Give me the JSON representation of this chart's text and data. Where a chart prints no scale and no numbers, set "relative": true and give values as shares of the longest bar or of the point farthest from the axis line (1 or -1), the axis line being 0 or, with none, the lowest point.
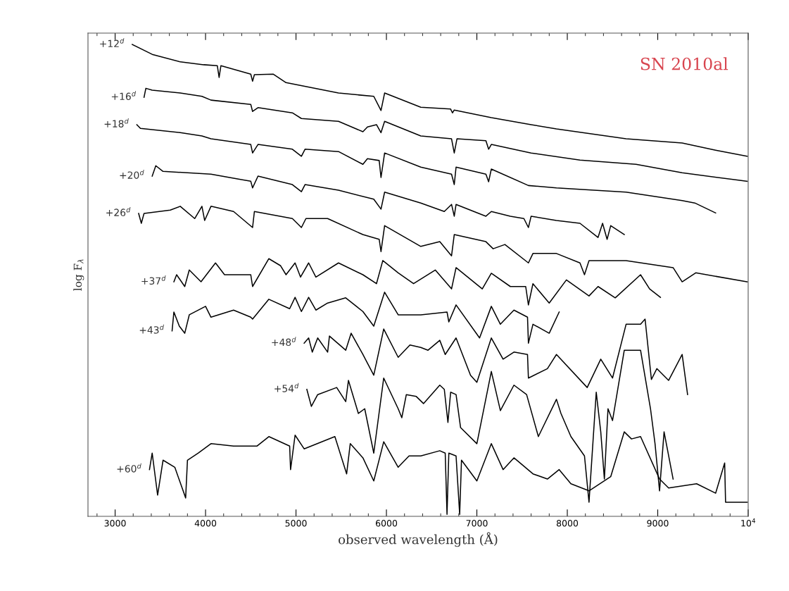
{
  "chart_data": {
    "type": "line",
    "relative": true,
    "xlabel": "observed wavelength (Å)",
    "ylabel": "log F$_{λ}$",
    "annotations": [
      "SN 2010al"
    ],
    "xlim": [
      2700,
      10000
    ],
    "xticks": [
      3000,
      4000,
      5000,
      6000,
      7000,
      8000,
      9000,
      {
        "value": 10000,
        "label": "10$^{4}$"
      }
    ],
    "series": [
      {
        "name": "+12$^{d}$",
        "color": "#000000",
        "x": [
          3190,
          3410,
          3720,
          3980,
          4130,
          4150,
          4170,
          4500,
          4520,
          4540,
          4750,
          4890,
          5470,
          5860,
          5940,
          5980,
          6380,
          6710,
          6730,
          6750,
          7160,
          7600,
          7880,
          8650,
          9270,
          9640,
          9990
        ],
        "values": [
          1.0,
          0.979,
          0.963,
          0.957,
          0.955,
          0.93,
          0.955,
          0.937,
          0.922,
          0.936,
          0.937,
          0.919,
          0.897,
          0.89,
          0.86,
          0.897,
          0.867,
          0.863,
          0.855,
          0.861,
          0.845,
          0.83,
          0.821,
          0.8,
          0.791,
          0.776,
          0.763
        ]
      },
      {
        "name": "+16$^{d}$",
        "color": "#000000",
        "x": [
          3320,
          3340,
          3410,
          3720,
          3960,
          4060,
          4500,
          4520,
          4580,
          4960,
          5060,
          5470,
          5740,
          5790,
          5890,
          5940,
          5980,
          6380,
          6720,
          6750,
          6780,
          7100,
          7130,
          7160,
          7600,
          8140,
          8760,
          9270,
          9990
        ],
        "values": [
          0.888,
          0.907,
          0.903,
          0.897,
          0.89,
          0.882,
          0.873,
          0.858,
          0.866,
          0.855,
          0.843,
          0.837,
          0.815,
          0.825,
          0.83,
          0.813,
          0.837,
          0.806,
          0.8,
          0.77,
          0.8,
          0.796,
          0.778,
          0.788,
          0.77,
          0.755,
          0.746,
          0.728,
          0.71
        ]
      },
      {
        "name": "+18$^{d}$",
        "color": "#000000",
        "x": [
          3240,
          3280,
          3720,
          3960,
          4060,
          4500,
          4520,
          4580,
          4960,
          5060,
          5100,
          5470,
          5740,
          5790,
          5920,
          5940,
          5980,
          6380,
          6720,
          6750,
          6770,
          7100,
          7130,
          7160,
          7570,
          7880,
          8650,
          9270,
          9410,
          9640
        ],
        "values": [
          0.83,
          0.822,
          0.813,
          0.806,
          0.8,
          0.788,
          0.77,
          0.788,
          0.778,
          0.763,
          0.778,
          0.773,
          0.746,
          0.758,
          0.754,
          0.718,
          0.77,
          0.74,
          0.725,
          0.703,
          0.74,
          0.725,
          0.709,
          0.736,
          0.701,
          0.696,
          0.687,
          0.669,
          0.664,
          0.643
        ]
      },
      {
        "name": "+20$^{d}$",
        "color": "#000000",
        "x": [
          3410,
          3450,
          3530,
          4060,
          4500,
          4520,
          4580,
          4960,
          5060,
          5100,
          5470,
          5860,
          5940,
          5980,
          6380,
          6640,
          6720,
          6750,
          6770,
          7100,
          7160,
          7370,
          7520,
          7570,
          7600,
          7880,
          8140,
          8340,
          8390,
          8440,
          8480,
          8630
        ],
        "values": [
          0.721,
          0.743,
          0.731,
          0.725,
          0.71,
          0.696,
          0.721,
          0.703,
          0.688,
          0.703,
          0.691,
          0.672,
          0.651,
          0.687,
          0.664,
          0.646,
          0.661,
          0.636,
          0.661,
          0.636,
          0.646,
          0.636,
          0.631,
          0.612,
          0.636,
          0.627,
          0.621,
          0.591,
          0.621,
          0.587,
          0.616,
          0.597
        ]
      },
      {
        "name": "+26$^{d}$",
        "color": "#000000",
        "x": [
          3260,
          3290,
          3320,
          3610,
          3720,
          3880,
          3960,
          3990,
          4060,
          4310,
          4520,
          4540,
          4960,
          5060,
          5110,
          5350,
          5740,
          5920,
          5940,
          5980,
          6380,
          6590,
          6720,
          6750,
          7100,
          7180,
          7310,
          7570,
          7620,
          7880,
          8140,
          8190,
          8240,
          8650,
          9170,
          9270,
          9420,
          9990
        ],
        "values": [
          0.642,
          0.621,
          0.642,
          0.649,
          0.657,
          0.631,
          0.657,
          0.627,
          0.657,
          0.646,
          0.612,
          0.646,
          0.631,
          0.612,
          0.631,
          0.631,
          0.597,
          0.587,
          0.561,
          0.616,
          0.572,
          0.582,
          0.552,
          0.597,
          0.582,
          0.567,
          0.576,
          0.537,
          0.557,
          0.557,
          0.537,
          0.512,
          0.542,
          0.542,
          0.527,
          0.497,
          0.516,
          0.497
        ]
      },
      {
        "name": "+37$^{d}$",
        "color": "#000000",
        "x": [
          3650,
          3680,
          3770,
          3820,
          3950,
          4110,
          4210,
          4500,
          4520,
          4700,
          4830,
          4890,
          4990,
          5050,
          5140,
          5220,
          5470,
          5740,
          5890,
          5960,
          6130,
          6300,
          6540,
          6720,
          6770,
          7060,
          7160,
          7370,
          7540,
          7570,
          7620,
          7800,
          7990,
          8240,
          8340,
          8530,
          8810,
          8910,
          9030
        ],
        "values": [
          0.497,
          0.512,
          0.487,
          0.522,
          0.497,
          0.537,
          0.512,
          0.512,
          0.487,
          0.546,
          0.531,
          0.512,
          0.537,
          0.507,
          0.537,
          0.507,
          0.537,
          0.512,
          0.493,
          0.542,
          0.516,
          0.493,
          0.522,
          0.482,
          0.527,
          0.482,
          0.515,
          0.487,
          0.487,
          0.448,
          0.493,
          0.452,
          0.501,
          0.467,
          0.487,
          0.463,
          0.512,
          0.482,
          0.464
        ]
      },
      {
        "name": "+43$^{d}$",
        "color": "#000000",
        "x": [
          3630,
          3650,
          3710,
          3770,
          3820,
          4000,
          4060,
          4310,
          4500,
          4520,
          4700,
          4930,
          4990,
          5060,
          5140,
          5220,
          5350,
          5550,
          5740,
          5860,
          5980,
          6130,
          6380,
          6670,
          6690,
          6770,
          7030,
          7160,
          7260,
          7410,
          7560,
          7570,
          7620,
          7800,
          7910
        ],
        "values": [
          0.393,
          0.433,
          0.403,
          0.388,
          0.427,
          0.445,
          0.422,
          0.437,
          0.422,
          0.418,
          0.46,
          0.44,
          0.464,
          0.434,
          0.464,
          0.437,
          0.452,
          0.463,
          0.434,
          0.403,
          0.475,
          0.427,
          0.427,
          0.433,
          0.412,
          0.448,
          0.378,
          0.445,
          0.407,
          0.437,
          0.422,
          0.367,
          0.407,
          0.388,
          0.433
        ]
      },
      {
        "name": "+48$^{d}$",
        "color": "#000000",
        "x": [
          5090,
          5140,
          5180,
          5240,
          5350,
          5370,
          5550,
          5610,
          5740,
          5860,
          5970,
          6130,
          6260,
          6380,
          6460,
          6590,
          6650,
          6770,
          6930,
          7000,
          7160,
          7290,
          7410,
          7560,
          7570,
          7780,
          7880,
          8220,
          8370,
          8500,
          8650,
          8810,
          8860,
          8930,
          8990,
          9120,
          9270,
          9330
        ],
        "values": [
          0.367,
          0.378,
          0.348,
          0.378,
          0.348,
          0.382,
          0.352,
          0.388,
          0.343,
          0.299,
          0.397,
          0.337,
          0.363,
          0.358,
          0.352,
          0.373,
          0.343,
          0.378,
          0.299,
          0.284,
          0.378,
          0.333,
          0.348,
          0.343,
          0.293,
          0.313,
          0.343,
          0.273,
          0.333,
          0.293,
          0.407,
          0.407,
          0.418,
          0.29,
          0.313,
          0.288,
          0.343,
          0.258
        ]
      },
      {
        "name": "+54$^{d}$",
        "color": "#000000",
        "x": [
          5120,
          5170,
          5240,
          5450,
          5550,
          5580,
          5690,
          5760,
          5860,
          5970,
          6130,
          6170,
          6220,
          6330,
          6410,
          6590,
          6640,
          6680,
          6710,
          6770,
          6820,
          7000,
          7160,
          7260,
          7410,
          7550,
          7680,
          7880,
          7930,
          8040,
          8190,
          8240,
          8320,
          8370,
          8410,
          8450,
          8500,
          8630,
          8810,
          8920,
          8970,
          9020,
          9070,
          9170
        ],
        "values": [
          0.269,
          0.233,
          0.258,
          0.273,
          0.243,
          0.288,
          0.218,
          0.228,
          0.134,
          0.293,
          0.228,
          0.209,
          0.258,
          0.254,
          0.239,
          0.278,
          0.269,
          0.199,
          0.263,
          0.258,
          0.188,
          0.154,
          0.307,
          0.224,
          0.278,
          0.258,
          0.169,
          0.248,
          0.218,
          0.169,
          0.128,
          0.03,
          0.263,
          0.179,
          0.079,
          0.228,
          0.203,
          0.352,
          0.352,
          0.228,
          0.154,
          0.054,
          0.179,
          0.079
        ]
      },
      {
        "name": "+60$^{d}$",
        "color": "#000000",
        "x": [
          3380,
          3410,
          3470,
          3530,
          3660,
          3780,
          3800,
          3920,
          4060,
          4310,
          4570,
          4700,
          4930,
          4940,
          4990,
          5090,
          5430,
          5560,
          5600,
          5740,
          5860,
          5970,
          6130,
          6250,
          6380,
          6590,
          6650,
          6670,
          6690,
          6770,
          6810,
          6830,
          7000,
          7160,
          7290,
          7410,
          7620,
          7780,
          7910,
          8040,
          8240,
          8480,
          8630,
          8710,
          8810,
          9020,
          9120,
          9430,
          9640,
          9740,
          9750,
          9990
        ],
        "values": [
          0.099,
          0.134,
          0.045,
          0.119,
          0.104,
          0.039,
          0.119,
          0.134,
          0.154,
          0.149,
          0.149,
          0.169,
          0.149,
          0.099,
          0.172,
          0.143,
          0.169,
          0.09,
          0.154,
          0.124,
          0.075,
          0.158,
          0.104,
          0.128,
          0.128,
          0.139,
          0.134,
          0.004,
          0.134,
          0.128,
          0.004,
          0.119,
          0.075,
          0.154,
          0.099,
          0.124,
          0.09,
          0.079,
          0.099,
          0.069,
          0.054,
          0.084,
          0.179,
          0.164,
          0.169,
          0.079,
          0.06,
          0.069,
          0.049,
          0.113,
          0.03,
          0.03
        ]
      }
    ]
  }
}
